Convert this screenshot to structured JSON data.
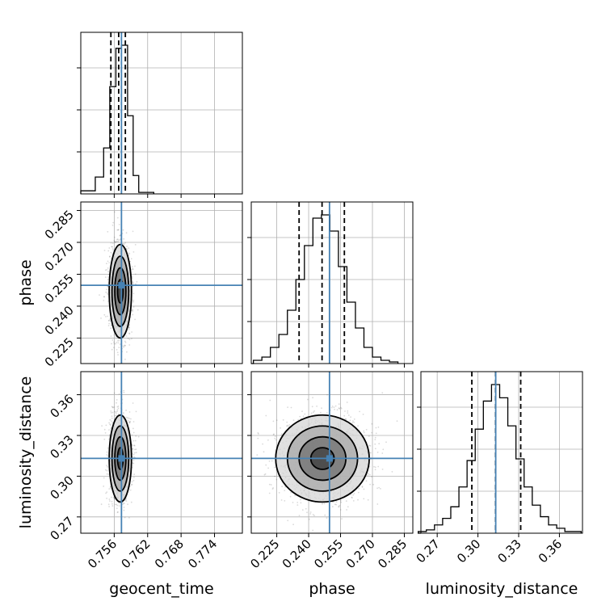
{
  "chart_data": [
    {
      "type": "histogram",
      "parameter": "geocent_time",
      "bins": [
        0.75,
        0.7526,
        0.7526,
        0.7541,
        0.7541,
        0.7552,
        0.7552,
        0.7563,
        0.7563,
        0.7573,
        0.7573,
        0.7584,
        0.7584,
        0.7594,
        0.7594,
        0.7604,
        0.7604,
        0.7631
      ],
      "bin_edges": [
        0.75,
        0.7526,
        0.7541,
        0.7552,
        0.7563,
        0.7573,
        0.7584,
        0.7594,
        0.7604,
        0.7631
      ],
      "counts": [
        0.02,
        0.11,
        0.3,
        0.7,
        0.95,
        0.97,
        0.51,
        0.12,
        0.01
      ],
      "quantiles": [
        0.7554,
        0.7568,
        0.758
      ],
      "truth": 0.7573,
      "xlim": [
        0.75,
        0.779
      ],
      "ticks": [
        0.756,
        0.762,
        0.768,
        0.774
      ],
      "tick_labels": [
        "0.756",
        "0.762",
        "0.768",
        "0.774"
      ],
      "xlabel": "geocent_time",
      "grid": true
    },
    {
      "type": "histogram",
      "parameter": "phase",
      "bin_edges": [
        0.214,
        0.218,
        0.222,
        0.226,
        0.23,
        0.234,
        0.238,
        0.242,
        0.246,
        0.25,
        0.254,
        0.258,
        0.262,
        0.266,
        0.27,
        0.274,
        0.278,
        0.282
      ],
      "counts": [
        0.02,
        0.04,
        0.1,
        0.18,
        0.33,
        0.52,
        0.73,
        0.9,
        0.92,
        0.82,
        0.6,
        0.38,
        0.22,
        0.1,
        0.04,
        0.02,
        0.01
      ],
      "quantiles": [
        0.2355,
        0.2463,
        0.2568
      ],
      "truth": 0.2498,
      "xlim": [
        0.213,
        0.289
      ],
      "ticks": [
        0.225,
        0.24,
        0.255,
        0.27,
        0.285
      ],
      "tick_labels": [
        "0.225",
        "0.240",
        "0.255",
        "0.270",
        "0.285"
      ],
      "xlabel": "phase",
      "grid": true
    },
    {
      "type": "histogram",
      "parameter": "luminosity_distance",
      "bin_edges": [
        0.256,
        0.262,
        0.268,
        0.274,
        0.28,
        0.286,
        0.292,
        0.298,
        0.304,
        0.31,
        0.316,
        0.322,
        0.328,
        0.334,
        0.34,
        0.346,
        0.352,
        0.358,
        0.364,
        0.37,
        0.376
      ],
      "counts": [
        0.01,
        0.02,
        0.05,
        0.09,
        0.16,
        0.28,
        0.44,
        0.63,
        0.8,
        0.9,
        0.82,
        0.65,
        0.45,
        0.28,
        0.17,
        0.1,
        0.05,
        0.03,
        0.01,
        0.01
      ],
      "quantiles": [
        0.2955,
        0.313,
        0.3315
      ],
      "truth": 0.3131,
      "xlim": [
        0.258,
        0.377
      ],
      "ticks": [
        0.27,
        0.3,
        0.33,
        0.36
      ],
      "tick_labels": [
        "0.27",
        "0.30",
        "0.33",
        "0.36"
      ],
      "xlabel": "luminosity_distance",
      "grid": true
    },
    {
      "type": "scatter",
      "x_param": "geocent_time",
      "y_param": "phase",
      "center": [
        0.7571,
        0.247
      ],
      "spread": [
        0.001,
        0.011
      ],
      "truth": [
        0.7573,
        0.2498
      ],
      "contour_levels": 4,
      "xlim": [
        0.75,
        0.779
      ],
      "ylim": [
        0.213,
        0.289
      ],
      "yticks": [
        0.225,
        0.24,
        0.255,
        0.27,
        0.285
      ],
      "ytick_labels": [
        "0.225",
        "0.240",
        "0.255",
        "0.270",
        "0.285"
      ],
      "ylabel": "phase",
      "grid": true
    },
    {
      "type": "scatter",
      "x_param": "geocent_time",
      "y_param": "luminosity_distance",
      "center": [
        0.7571,
        0.313
      ],
      "spread": [
        0.001,
        0.016
      ],
      "truth": [
        0.7573,
        0.3131
      ],
      "contour_levels": 4,
      "xlim": [
        0.75,
        0.779
      ],
      "ylim": [
        0.258,
        0.377
      ],
      "yticks": [
        0.27,
        0.3,
        0.33,
        0.36
      ],
      "ytick_labels": [
        "0.27",
        "0.30",
        "0.33",
        "0.36"
      ],
      "ylabel": "luminosity_distance",
      "grid": true
    },
    {
      "type": "scatter",
      "x_param": "phase",
      "y_param": "luminosity_distance",
      "center": [
        0.2465,
        0.313
      ],
      "spread": [
        0.011,
        0.016
      ],
      "truth": [
        0.2498,
        0.3131
      ],
      "contour_levels": 4,
      "xlim": [
        0.213,
        0.289
      ],
      "ylim": [
        0.258,
        0.377
      ],
      "grid": true
    }
  ],
  "colors": {
    "truth_line": "#4682b4",
    "hist_line": "#000000",
    "quantile_line": "#000000",
    "grid": "#b0b0b0",
    "scatter": "#555555"
  }
}
